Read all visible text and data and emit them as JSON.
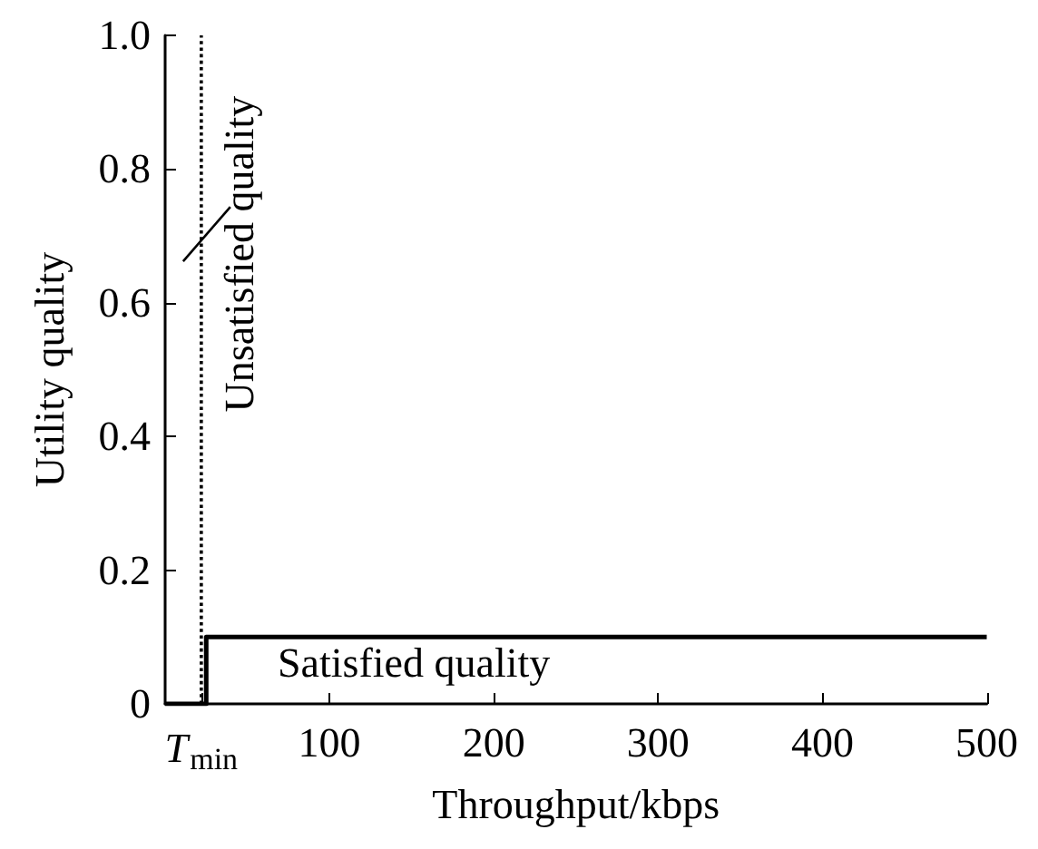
{
  "chart_data": {
    "type": "line",
    "xlabel": "Throughput/kbps",
    "ylabel": "Utility quality",
    "series": [
      {
        "color": "#000000",
        "x": [
          0,
          25,
          25,
          500
        ],
        "values": [
          0,
          0,
          0.1,
          0.1
        ]
      }
    ],
    "xlim": [
      0,
      500
    ],
    "xticks": [
      {
        "value": 22,
        "label": "T$_{min}$"
      },
      100,
      200,
      300,
      400,
      500
    ],
    "ylim": [
      0,
      1
    ],
    "yticks": [
      {
        "value": 0,
        "label": "0"
      },
      0.2,
      0.4,
      0.6,
      0.8,
      {
        "value": 1,
        "label": "1.0"
      }
    ],
    "ref_lines": [
      {
        "axis": "x",
        "value": 22,
        "line_style": "dotted",
        "color": "#000000"
      }
    ],
    "annotations": [
      {
        "text": "Unsatisfied quality",
        "x": 22,
        "y": 0.7
      },
      "Satisfied quality"
    ],
    "grid": false,
    "marker": "none",
    "line_style": "solid"
  }
}
